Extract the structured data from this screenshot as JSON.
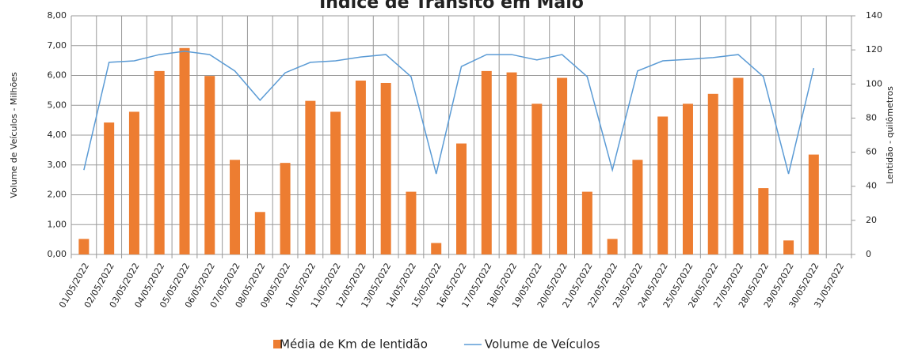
{
  "chart_data": {
    "type": "bar-line",
    "title": "Índice de Trânsito em Maio",
    "ylabel": "Volume de Veículos  -  Milhões",
    "y2label": "Lentidão - quilômetros",
    "categories": [
      "01/05/2022",
      "02/05/2022",
      "03/05/2022",
      "04/05/2022",
      "05/05/2022",
      "06/05/2022",
      "07/05/2022",
      "08/05/2022",
      "09/05/2022",
      "10/05/2022",
      "11/05/2022",
      "12/05/2022",
      "13/05/2022",
      "14/05/2022",
      "15/05/2022",
      "16/05/2022",
      "17/05/2022",
      "18/05/2022",
      "19/05/2022",
      "20/05/2022",
      "21/05/2022",
      "22/05/2022",
      "23/05/2022",
      "24/05/2022",
      "25/05/2022",
      "26/05/2022",
      "27/05/2022",
      "28/05/2022",
      "29/05/2022",
      "30/05/2022",
      "31/05/2022"
    ],
    "series": [
      {
        "name": "Média de Km de lentidão",
        "type": "bar",
        "axis": "y2",
        "color": "#ed7d31",
        "values": [
          9.1,
          77.4,
          83.7,
          107.6,
          121.1,
          104.7,
          55.5,
          24.9,
          53.7,
          90.1,
          83.7,
          102.0,
          100.6,
          36.8,
          6.7,
          65.1,
          107.6,
          106.8,
          88.4,
          103.6,
          36.8,
          9.1,
          55.5,
          80.9,
          88.4,
          94.2,
          103.6,
          38.9,
          8.2,
          58.6,
          null
        ]
      },
      {
        "name": "Volume de Veículos",
        "type": "line",
        "axis": "y",
        "color": "#5b9bd5",
        "values": [
          2.83,
          6.44,
          6.49,
          6.7,
          6.81,
          6.7,
          6.15,
          5.17,
          6.09,
          6.44,
          6.49,
          6.62,
          6.7,
          5.96,
          2.7,
          6.3,
          6.7,
          6.7,
          6.52,
          6.7,
          5.96,
          2.83,
          6.15,
          6.49,
          6.54,
          6.6,
          6.7,
          5.96,
          2.7,
          6.25,
          null
        ]
      }
    ],
    "ylim": [
      0,
      8
    ],
    "yticks": [
      {
        "value": 0,
        "label": "0,00"
      },
      {
        "value": 1,
        "label": "1,00"
      },
      {
        "value": 2,
        "label": "2,00"
      },
      {
        "value": 3,
        "label": "3,00"
      },
      {
        "value": 4,
        "label": "4,00"
      },
      {
        "value": 5,
        "label": "5,00"
      },
      {
        "value": 6,
        "label": "6,00"
      },
      {
        "value": 7,
        "label": "7,00"
      },
      {
        "value": 8,
        "label": "8,00"
      }
    ],
    "y2lim": [
      0,
      140
    ],
    "y2ticks": [
      0,
      20,
      40,
      60,
      80,
      100,
      120,
      140
    ],
    "grid": true,
    "legend": "bottom"
  }
}
